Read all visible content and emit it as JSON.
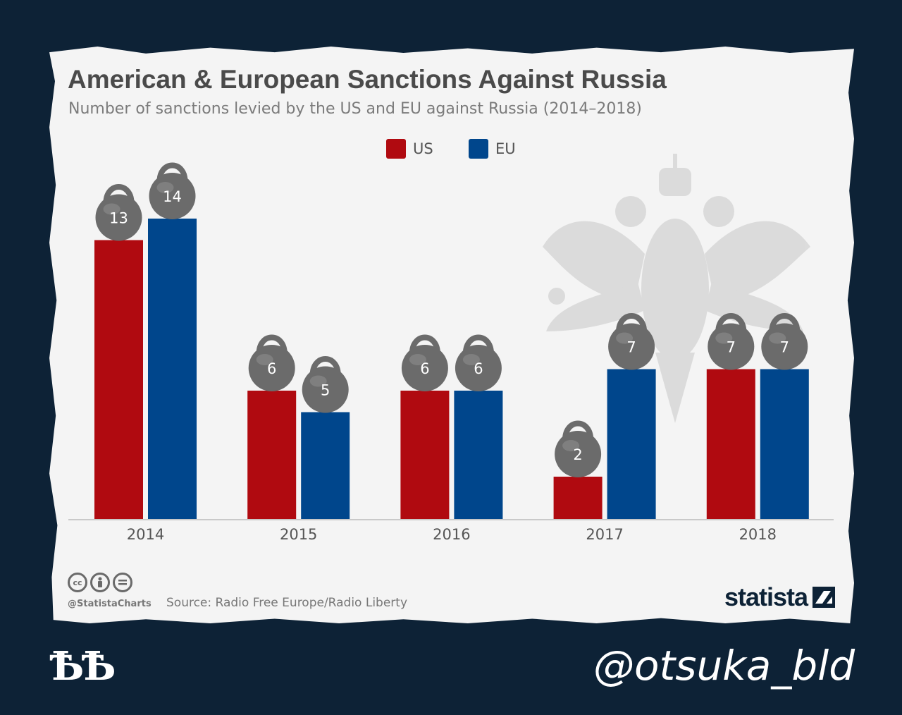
{
  "chart_data": {
    "type": "bar",
    "title": "American & European Sanctions Against Russia",
    "subtitle": "Number of sanctions levied by the US and EU against Russia (2014–2018)",
    "categories": [
      "2014",
      "2015",
      "2016",
      "2017",
      "2018"
    ],
    "series": [
      {
        "name": "US",
        "color": "#b00a10",
        "values": [
          13,
          6,
          6,
          2,
          7
        ]
      },
      {
        "name": "EU",
        "color": "#00468c",
        "values": [
          14,
          5,
          6,
          7,
          7
        ]
      }
    ],
    "ylim": [
      0,
      14
    ],
    "grid": false,
    "legend": "top-center",
    "data_label_style": "kettlebell"
  },
  "footer": {
    "handle": "@StatistaCharts",
    "source": "Source: Radio Free Europe/Radio Liberty",
    "license_icons": [
      "cc",
      "by",
      "nd"
    ],
    "brand": "statista"
  },
  "overlay": {
    "corner_logo": "ѢѢ",
    "signature": "@otsuka_bld"
  },
  "decor": {
    "watermark": "double-headed-eagle-icon",
    "kettlebell_color": "#6b6b6b"
  }
}
